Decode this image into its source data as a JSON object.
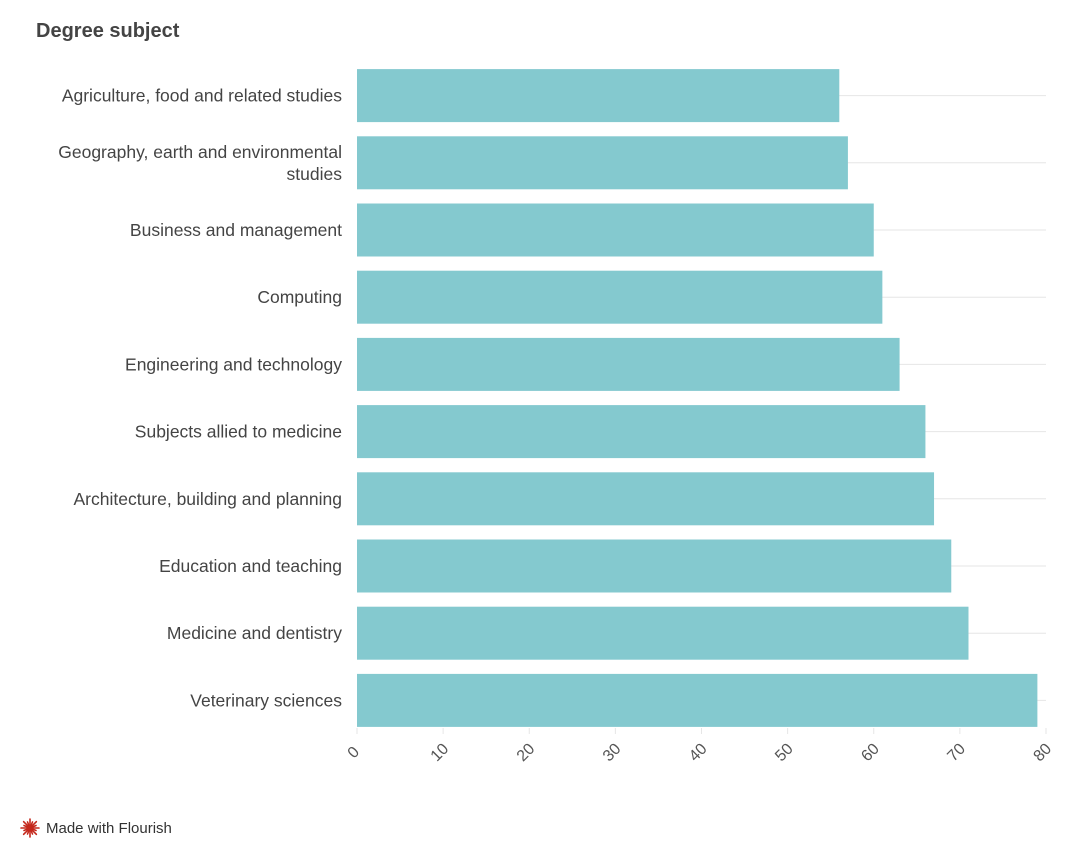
{
  "chart_data": {
    "type": "bar",
    "orientation": "horizontal",
    "title": "Degree subject",
    "categories": [
      "Agriculture, food and related studies",
      "Geography, earth and environmental studies",
      "Business and management",
      "Computing",
      "Engineering and technology",
      "Subjects allied to medicine",
      "Architecture, building and planning",
      "Education and teaching",
      "Medicine and dentistry",
      "Veterinary sciences"
    ],
    "category_lines": [
      [
        "Agriculture, food and related studies"
      ],
      [
        "Geography, earth and environmental",
        "studies"
      ],
      [
        "Business and management"
      ],
      [
        "Computing"
      ],
      [
        "Engineering and technology"
      ],
      [
        "Subjects allied to medicine"
      ],
      [
        "Architecture, building and planning"
      ],
      [
        "Education and teaching"
      ],
      [
        "Medicine and dentistry"
      ],
      [
        "Veterinary sciences"
      ]
    ],
    "values": [
      56,
      57,
      60,
      61,
      63,
      66,
      67,
      69,
      71,
      79
    ],
    "xlim": [
      0,
      80
    ],
    "xticks": [
      "0",
      "10",
      "20",
      "30",
      "40",
      "50",
      "60",
      "70",
      "80"
    ],
    "grid": true,
    "colors": {
      "bar": "#84c9cf"
    }
  },
  "footer": {
    "label": "Made with Flourish",
    "icon": "flourish-logo-icon",
    "icon_color": "#c4281c"
  }
}
